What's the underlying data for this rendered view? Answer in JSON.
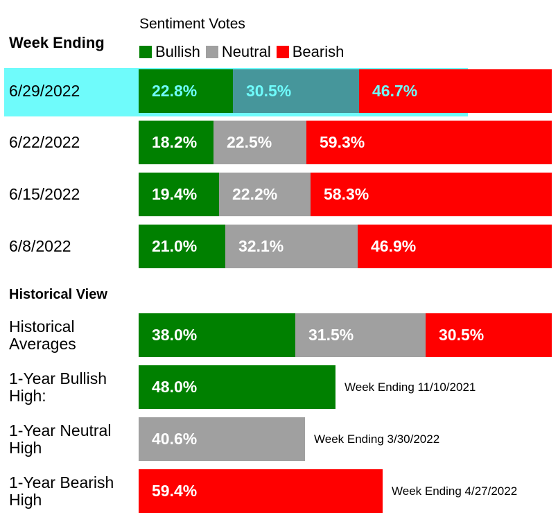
{
  "header": {
    "legend_title": "Sentiment Votes",
    "week_heading": "Week Ending",
    "legend": [
      {
        "label": "Bullish",
        "color": "#008000"
      },
      {
        "label": "Neutral",
        "color": "#a0a0a0"
      },
      {
        "label": "Bearish",
        "color": "#ff0000"
      }
    ]
  },
  "historical": {
    "heading": "Historical View"
  },
  "chart_data": {
    "type": "bar",
    "stacked": true,
    "orientation": "horizontal",
    "weekly": [
      {
        "label": "6/29/2022",
        "values": [
          22.8,
          30.5,
          46.7
        ],
        "labels": [
          "22.8%",
          "30.5%",
          "46.7%"
        ],
        "highlighted": true
      },
      {
        "label": "6/22/2022",
        "values": [
          18.2,
          22.5,
          59.3
        ],
        "labels": [
          "18.2%",
          "22.5%",
          "59.3%"
        ]
      },
      {
        "label": "6/15/2022",
        "values": [
          19.4,
          22.2,
          58.3
        ],
        "labels": [
          "19.4%",
          "22.2%",
          "58.3%"
        ]
      },
      {
        "label": "6/8/2022",
        "values": [
          21.0,
          32.1,
          46.9
        ],
        "labels": [
          "21.0%",
          "32.1%",
          "46.9%"
        ]
      }
    ],
    "historical_rows": [
      {
        "label_lines": [
          "Historical",
          "Averages"
        ],
        "values": [
          38.0,
          31.5,
          30.5
        ],
        "labels": [
          "38.0%",
          "31.5%",
          "30.5%"
        ]
      },
      {
        "label_lines": [
          "1-Year Bullish",
          "High:"
        ],
        "series": 0,
        "value": 48.0,
        "value_label": "48.0%",
        "note": "Week Ending 11/10/2021"
      },
      {
        "label_lines": [
          "1-Year Neutral",
          "High"
        ],
        "series": 1,
        "value": 40.6,
        "value_label": "40.6%",
        "note": "Week Ending 3/30/2022"
      },
      {
        "label_lines": [
          "1-Year Bearish",
          "High"
        ],
        "series": 2,
        "value": 59.4,
        "value_label": "59.4%",
        "note": "Week Ending 4/27/2022"
      }
    ]
  }
}
